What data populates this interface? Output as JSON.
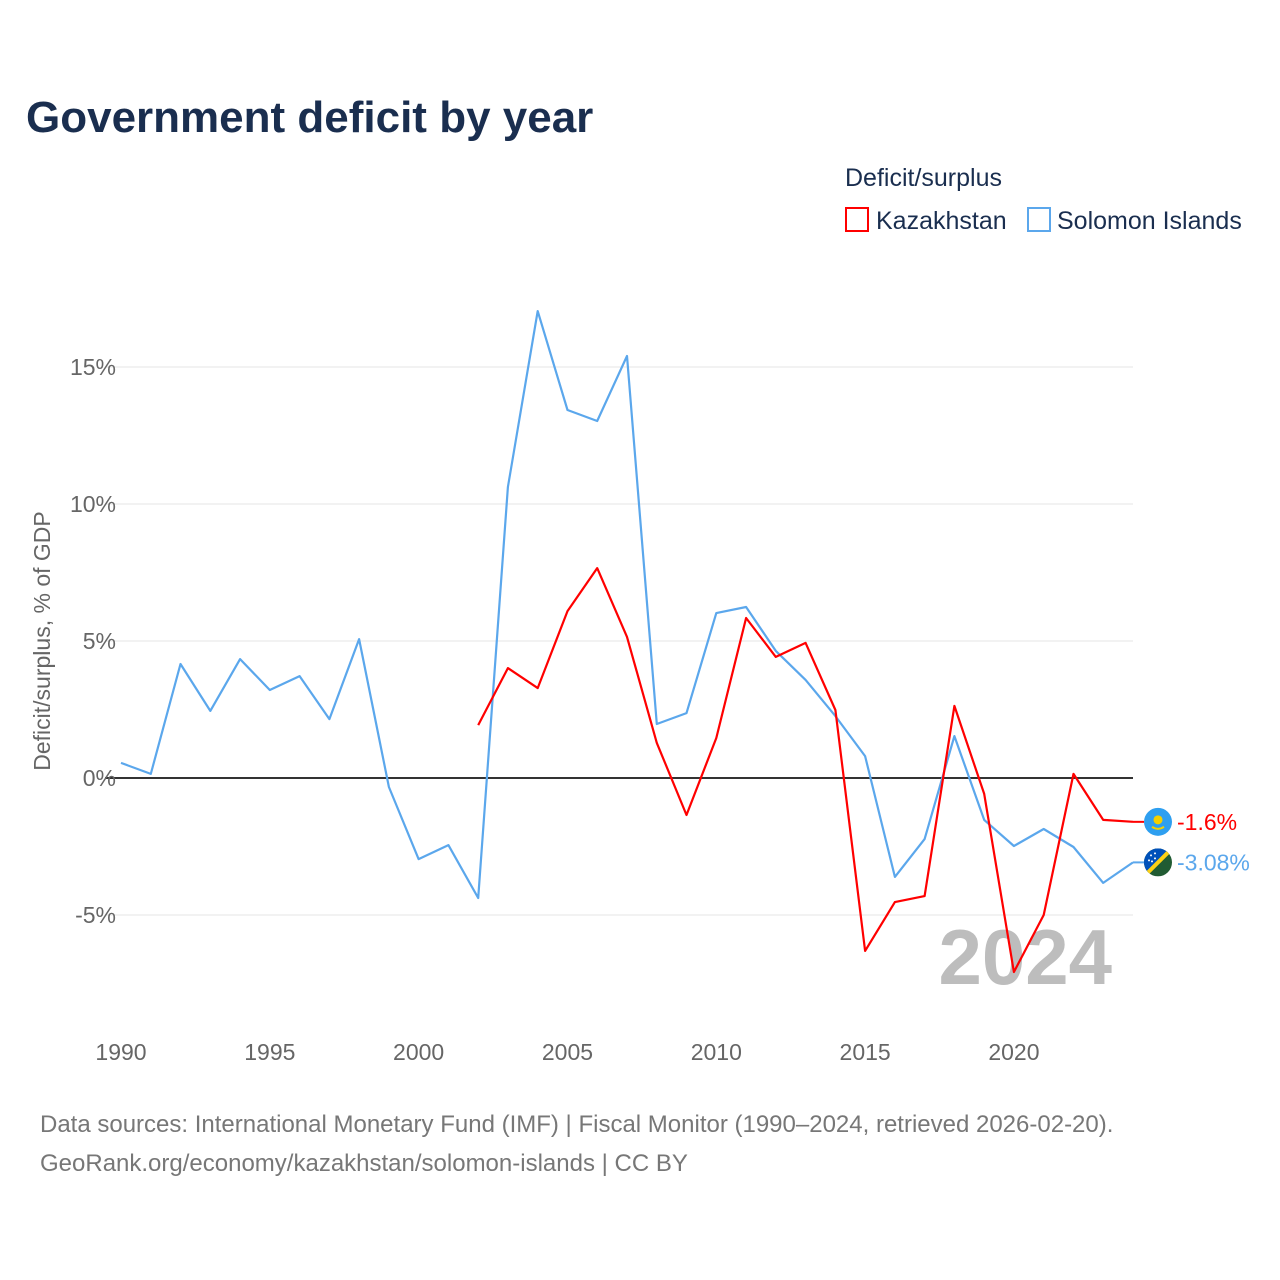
{
  "chart_data": {
    "type": "line",
    "title": "Government deficit by year",
    "ylabel": "Deficit/surplus, % of GDP",
    "xlabel": "",
    "legend_title": "Deficit/surplus",
    "legend_position": "top-right",
    "xlim": [
      1990,
      2024
    ],
    "ylim": [
      -8.5,
      18
    ],
    "x_ticks": [
      1990,
      1995,
      2000,
      2005,
      2010,
      2015,
      2020
    ],
    "x_tick_labels": [
      "1990",
      "1995",
      "2000",
      "2005",
      "2010",
      "2015",
      "2020"
    ],
    "y_ticks": [
      -5,
      0,
      5,
      10,
      15
    ],
    "y_tick_labels": [
      "-5%",
      "0%",
      "5%",
      "10%",
      "15%"
    ],
    "grid": true,
    "year_watermark": "2024",
    "series": [
      {
        "name": "Kazakhstan",
        "color": "#ff0000",
        "end_label": "-1.6%",
        "x": [
          2002,
          2003,
          2004,
          2005,
          2006,
          2007,
          2008,
          2009,
          2010,
          2011,
          2012,
          2013,
          2014,
          2015,
          2016,
          2017,
          2018,
          2019,
          2020,
          2021,
          2022,
          2023,
          2024
        ],
        "values": [
          1.93,
          4.01,
          3.28,
          6.09,
          7.66,
          5.15,
          1.28,
          -1.35,
          1.46,
          5.84,
          4.42,
          4.93,
          2.48,
          -6.31,
          -4.53,
          -4.31,
          2.63,
          -0.58,
          -7.08,
          -5.0,
          0.15,
          -1.53,
          -1.6
        ]
      },
      {
        "name": "Solomon Islands",
        "color": "#5ba7ec",
        "end_label": "-3.08%",
        "x": [
          1990,
          1991,
          1992,
          1993,
          1994,
          1995,
          1996,
          1997,
          1998,
          1999,
          2000,
          2001,
          2002,
          2003,
          2004,
          2005,
          2006,
          2007,
          2008,
          2009,
          2010,
          2011,
          2012,
          2013,
          2014,
          2015,
          2016,
          2017,
          2018,
          2019,
          2020,
          2021,
          2022,
          2023,
          2024
        ],
        "values": [
          0.55,
          0.15,
          4.16,
          2.45,
          4.34,
          3.21,
          3.72,
          2.15,
          5.07,
          -0.33,
          -2.96,
          -2.45,
          -4.38,
          10.62,
          17.04,
          13.43,
          13.03,
          15.4,
          1.97,
          2.37,
          6.02,
          6.24,
          4.64,
          3.58,
          2.26,
          0.8,
          -3.61,
          -2.23,
          1.53,
          -1.53,
          -2.48,
          -1.86,
          -2.52,
          -3.83,
          -3.08
        ]
      }
    ]
  },
  "footer": {
    "source_line": "Data sources: International Monetary Fund (IMF) | Fiscal Monitor (1990–2024, retrieved 2026-02-20).",
    "url_line": "GeoRank.org/economy/kazakhstan/solomon-islands | CC BY"
  }
}
